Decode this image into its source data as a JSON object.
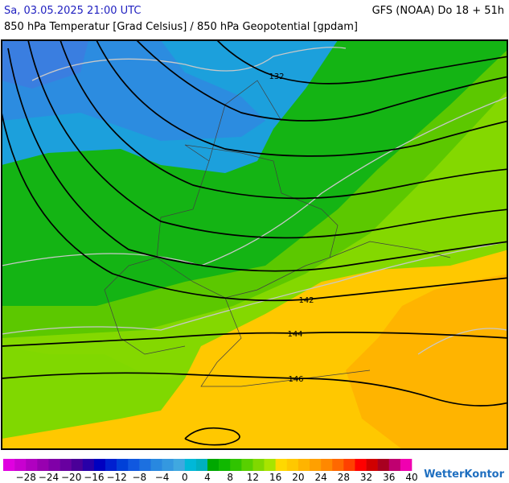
{
  "header": {
    "date": "Sa, 03.05.2025 21:00 UTC",
    "model": "GFS (NOAA) Do 18 + 51h",
    "subtitle": "850 hPa Temperatur [Grad Celsius] / 850 hPa Geopotential [gpdam]"
  },
  "map": {
    "contour_labels": [
      "132",
      "142",
      "144",
      "146"
    ]
  },
  "colorbar": {
    "labels": [
      "−28",
      "−24",
      "−20",
      "−16",
      "−12",
      "−8",
      "−4",
      "0",
      "4",
      "8",
      "12",
      "16",
      "20",
      "24",
      "28",
      "32",
      "36",
      "40"
    ],
    "colors": [
      "#e000e0",
      "#c800d0",
      "#b000c0",
      "#9800b0",
      "#8000a8",
      "#6800a0",
      "#4a0098",
      "#2800a8",
      "#0000c0",
      "#0020d0",
      "#0040d8",
      "#1058e0",
      "#1c70e0",
      "#2888e0",
      "#3498e0",
      "#40a8e0",
      "#00b8d8",
      "#00b0c0",
      "#00a800",
      "#10b800",
      "#30c400",
      "#58d000",
      "#80d800",
      "#a8e400",
      "#ffd800",
      "#ffc800",
      "#ffb400",
      "#ffa000",
      "#ff8800",
      "#ff6800",
      "#ff4000",
      "#ff0000",
      "#d00000",
      "#a80020",
      "#c00070",
      "#f000b0"
    ]
  },
  "logo": "WetterKontor"
}
